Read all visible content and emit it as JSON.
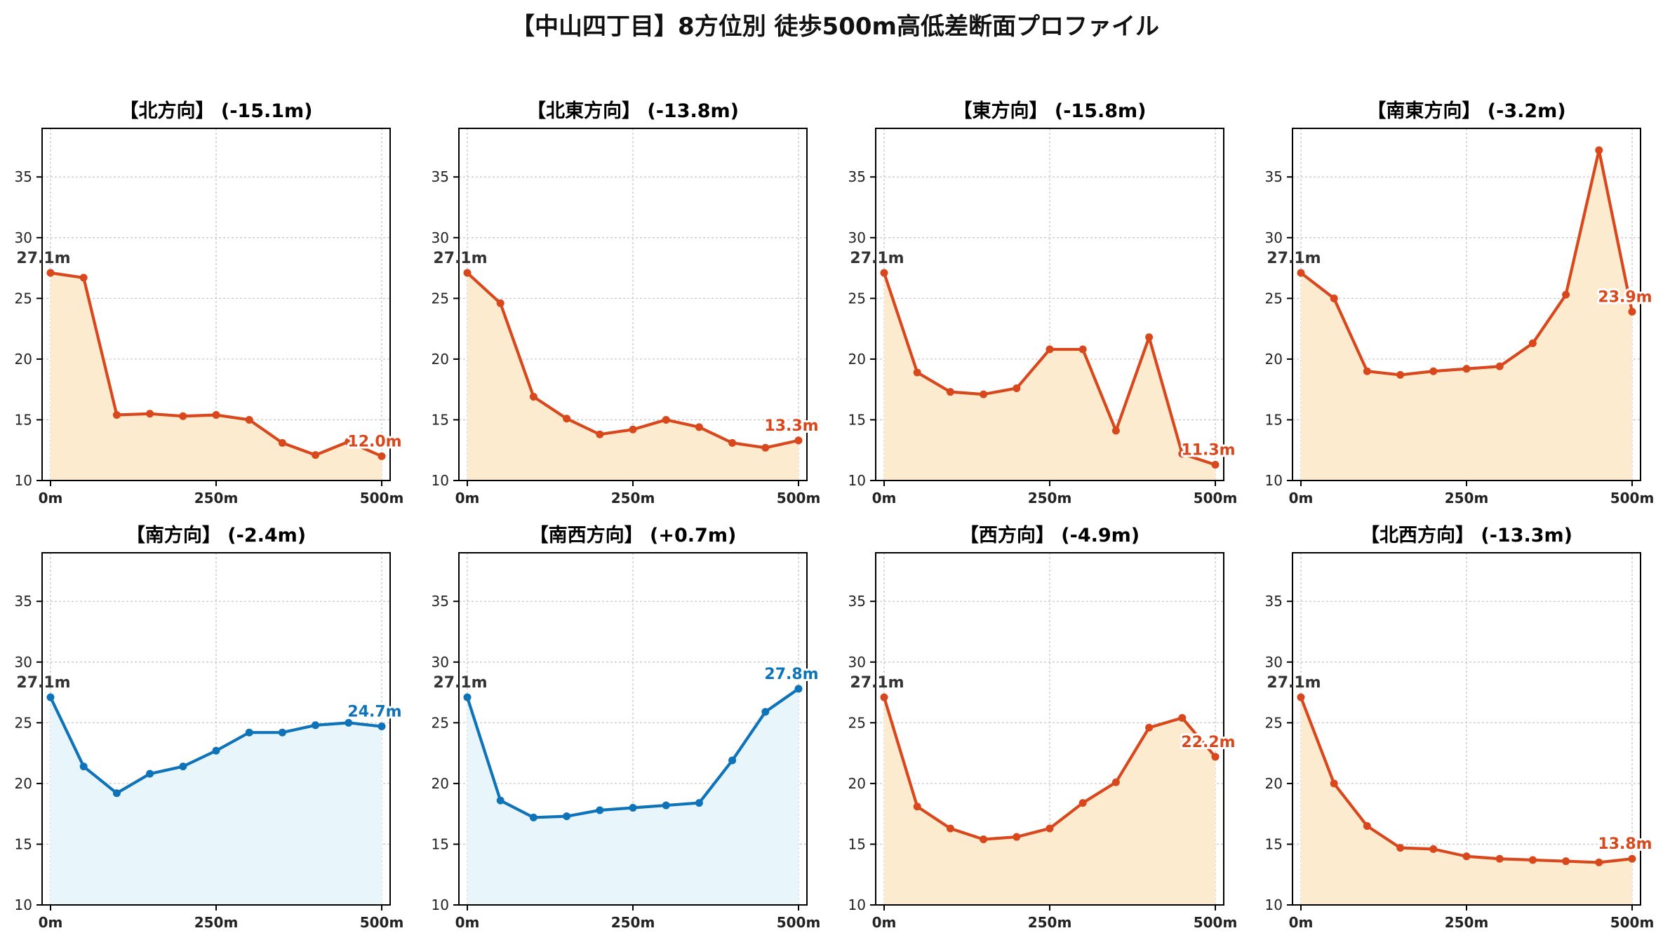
{
  "title": "【中山四丁目】8方位別 徒歩500m高低差断面プロファイル",
  "colors": {
    "down_line": "#d9471c",
    "down_fill": "#fdebd0",
    "up_line": "#0e73b8",
    "up_fill": "#e8f6fc",
    "start_label": "#333333",
    "grid": "#c8c8c8"
  },
  "chart_data": [
    {
      "type": "area",
      "title": "【北方向】 (-15.1m)",
      "trend": "down",
      "x": [
        0,
        50,
        100,
        150,
        200,
        250,
        300,
        350,
        400,
        450,
        500
      ],
      "y": [
        27.1,
        26.7,
        15.4,
        15.5,
        15.3,
        15.4,
        15.0,
        13.1,
        12.1,
        13.2,
        12.0
      ],
      "start_label": "27.1m",
      "end_label": "12.0m",
      "xticks": [
        "0m",
        "250m",
        "500m"
      ],
      "yticks": [
        10,
        15,
        20,
        25,
        30,
        35
      ],
      "xlim": [
        0,
        500
      ],
      "ylim": [
        10,
        39
      ],
      "grid": true
    },
    {
      "type": "area",
      "title": "【北東方向】 (-13.8m)",
      "trend": "down",
      "x": [
        0,
        50,
        100,
        150,
        200,
        250,
        300,
        350,
        400,
        450,
        500
      ],
      "y": [
        27.1,
        24.6,
        16.9,
        15.1,
        13.8,
        14.2,
        15.0,
        14.4,
        13.1,
        12.7,
        13.3
      ],
      "start_label": "27.1m",
      "end_label": "13.3m",
      "xticks": [
        "0m",
        "250m",
        "500m"
      ],
      "yticks": [
        10,
        15,
        20,
        25,
        30,
        35
      ],
      "xlim": [
        0,
        500
      ],
      "ylim": [
        10,
        39
      ],
      "grid": true
    },
    {
      "type": "area",
      "title": "【東方向】 (-15.8m)",
      "trend": "down",
      "x": [
        0,
        50,
        100,
        150,
        200,
        250,
        300,
        350,
        400,
        450,
        500
      ],
      "y": [
        27.1,
        18.9,
        17.3,
        17.1,
        17.6,
        20.8,
        20.8,
        14.1,
        21.8,
        12.2,
        11.3
      ],
      "start_label": "27.1m",
      "end_label": "11.3m",
      "xticks": [
        "0m",
        "250m",
        "500m"
      ],
      "yticks": [
        10,
        15,
        20,
        25,
        30,
        35
      ],
      "xlim": [
        0,
        500
      ],
      "ylim": [
        10,
        39
      ],
      "grid": true
    },
    {
      "type": "area",
      "title": "【南東方向】 (-3.2m)",
      "trend": "down",
      "x": [
        0,
        50,
        100,
        150,
        200,
        250,
        300,
        350,
        400,
        450,
        500
      ],
      "y": [
        27.1,
        25.0,
        19.0,
        18.7,
        19.0,
        19.2,
        19.4,
        21.3,
        25.3,
        37.2,
        23.9
      ],
      "start_label": "27.1m",
      "end_label": "23.9m",
      "xticks": [
        "0m",
        "250m",
        "500m"
      ],
      "yticks": [
        10,
        15,
        20,
        25,
        30,
        35
      ],
      "xlim": [
        0,
        500
      ],
      "ylim": [
        10,
        39
      ],
      "grid": true
    },
    {
      "type": "area",
      "title": "【南方向】 (-2.4m)",
      "trend": "up",
      "x": [
        0,
        50,
        100,
        150,
        200,
        250,
        300,
        350,
        400,
        450,
        500
      ],
      "y": [
        27.1,
        21.4,
        19.2,
        20.8,
        21.4,
        22.7,
        24.2,
        24.2,
        24.8,
        25.0,
        24.7
      ],
      "start_label": "27.1m",
      "end_label": "24.7m",
      "xticks": [
        "0m",
        "250m",
        "500m"
      ],
      "yticks": [
        10,
        15,
        20,
        25,
        30,
        35
      ],
      "xlim": [
        0,
        500
      ],
      "ylim": [
        10,
        39
      ],
      "grid": true
    },
    {
      "type": "area",
      "title": "【南西方向】 (+0.7m)",
      "trend": "up",
      "x": [
        0,
        50,
        100,
        150,
        200,
        250,
        300,
        350,
        400,
        450,
        500
      ],
      "y": [
        27.1,
        18.6,
        17.2,
        17.3,
        17.8,
        18.0,
        18.2,
        18.4,
        21.9,
        25.9,
        27.8
      ],
      "start_label": "27.1m",
      "end_label": "27.8m",
      "xticks": [
        "0m",
        "250m",
        "500m"
      ],
      "yticks": [
        10,
        15,
        20,
        25,
        30,
        35
      ],
      "xlim": [
        0,
        500
      ],
      "ylim": [
        10,
        39
      ],
      "grid": true
    },
    {
      "type": "area",
      "title": "【西方向】 (-4.9m)",
      "trend": "down",
      "x": [
        0,
        50,
        100,
        150,
        200,
        250,
        300,
        350,
        400,
        450,
        500
      ],
      "y": [
        27.1,
        18.1,
        16.3,
        15.4,
        15.6,
        16.3,
        18.4,
        20.1,
        24.6,
        25.4,
        22.2
      ],
      "start_label": "27.1m",
      "end_label": "22.2m",
      "xticks": [
        "0m",
        "250m",
        "500m"
      ],
      "yticks": [
        10,
        15,
        20,
        25,
        30,
        35
      ],
      "xlim": [
        0,
        500
      ],
      "ylim": [
        10,
        39
      ],
      "grid": true
    },
    {
      "type": "area",
      "title": "【北西方向】 (-13.3m)",
      "trend": "down",
      "x": [
        0,
        50,
        100,
        150,
        200,
        250,
        300,
        350,
        400,
        450,
        500
      ],
      "y": [
        27.1,
        20.0,
        16.5,
        14.7,
        14.6,
        14.0,
        13.8,
        13.7,
        13.6,
        13.5,
        13.8
      ],
      "start_label": "27.1m",
      "end_label": "13.8m",
      "xticks": [
        "0m",
        "250m",
        "500m"
      ],
      "yticks": [
        10,
        15,
        20,
        25,
        30,
        35
      ],
      "xlim": [
        0,
        500
      ],
      "ylim": [
        10,
        39
      ],
      "grid": true
    }
  ]
}
